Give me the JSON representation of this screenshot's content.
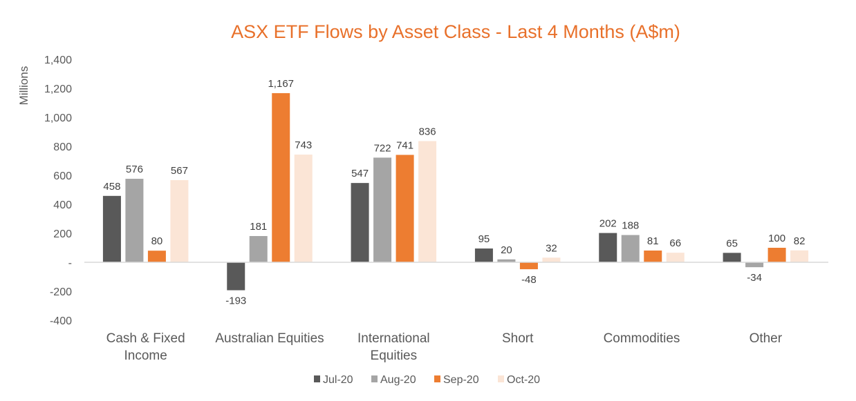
{
  "chart_data": {
    "type": "bar",
    "title": "ASX ETF Flows by Asset Class - Last 4 Months (A$m)",
    "ylabel": "Millions",
    "xlabel": "",
    "ylim": [
      -400,
      1400
    ],
    "yticks": [
      -400,
      -200,
      0,
      200,
      400,
      600,
      800,
      1000,
      1200,
      1400
    ],
    "ytick_labels": [
      "-400",
      "-200",
      "-",
      "200",
      "400",
      "600",
      "800",
      "1,000",
      "1,200",
      "1,400"
    ],
    "grid": false,
    "legend_position": "bottom",
    "categories": [
      [
        "Cash & Fixed",
        "Income"
      ],
      [
        "Australian Equities"
      ],
      [
        "International",
        "Equities"
      ],
      [
        "Short"
      ],
      [
        "Commodities"
      ],
      [
        "Other"
      ]
    ],
    "series": [
      {
        "name": "Jul-20",
        "color": "#595959",
        "values": [
          458,
          -193,
          547,
          95,
          202,
          65
        ],
        "labels": [
          "458",
          "-193",
          "547",
          "95",
          "202",
          "65"
        ]
      },
      {
        "name": "Aug-20",
        "color": "#a5a5a5",
        "values": [
          576,
          181,
          722,
          20,
          188,
          -34
        ],
        "labels": [
          "576",
          "181",
          "722",
          "20",
          "188",
          "-34"
        ]
      },
      {
        "name": "Sep-20",
        "color": "#ed7d31",
        "values": [
          80,
          1167,
          741,
          -48,
          81,
          100
        ],
        "labels": [
          "80",
          "1,167",
          "741",
          "-48",
          "81",
          "100"
        ]
      },
      {
        "name": "Oct-20",
        "color": "#fbe5d6",
        "values": [
          567,
          743,
          836,
          32,
          66,
          82
        ],
        "labels": [
          "567",
          "743",
          "836",
          "32",
          "66",
          "82"
        ]
      }
    ],
    "title_color": "#e8702a"
  }
}
